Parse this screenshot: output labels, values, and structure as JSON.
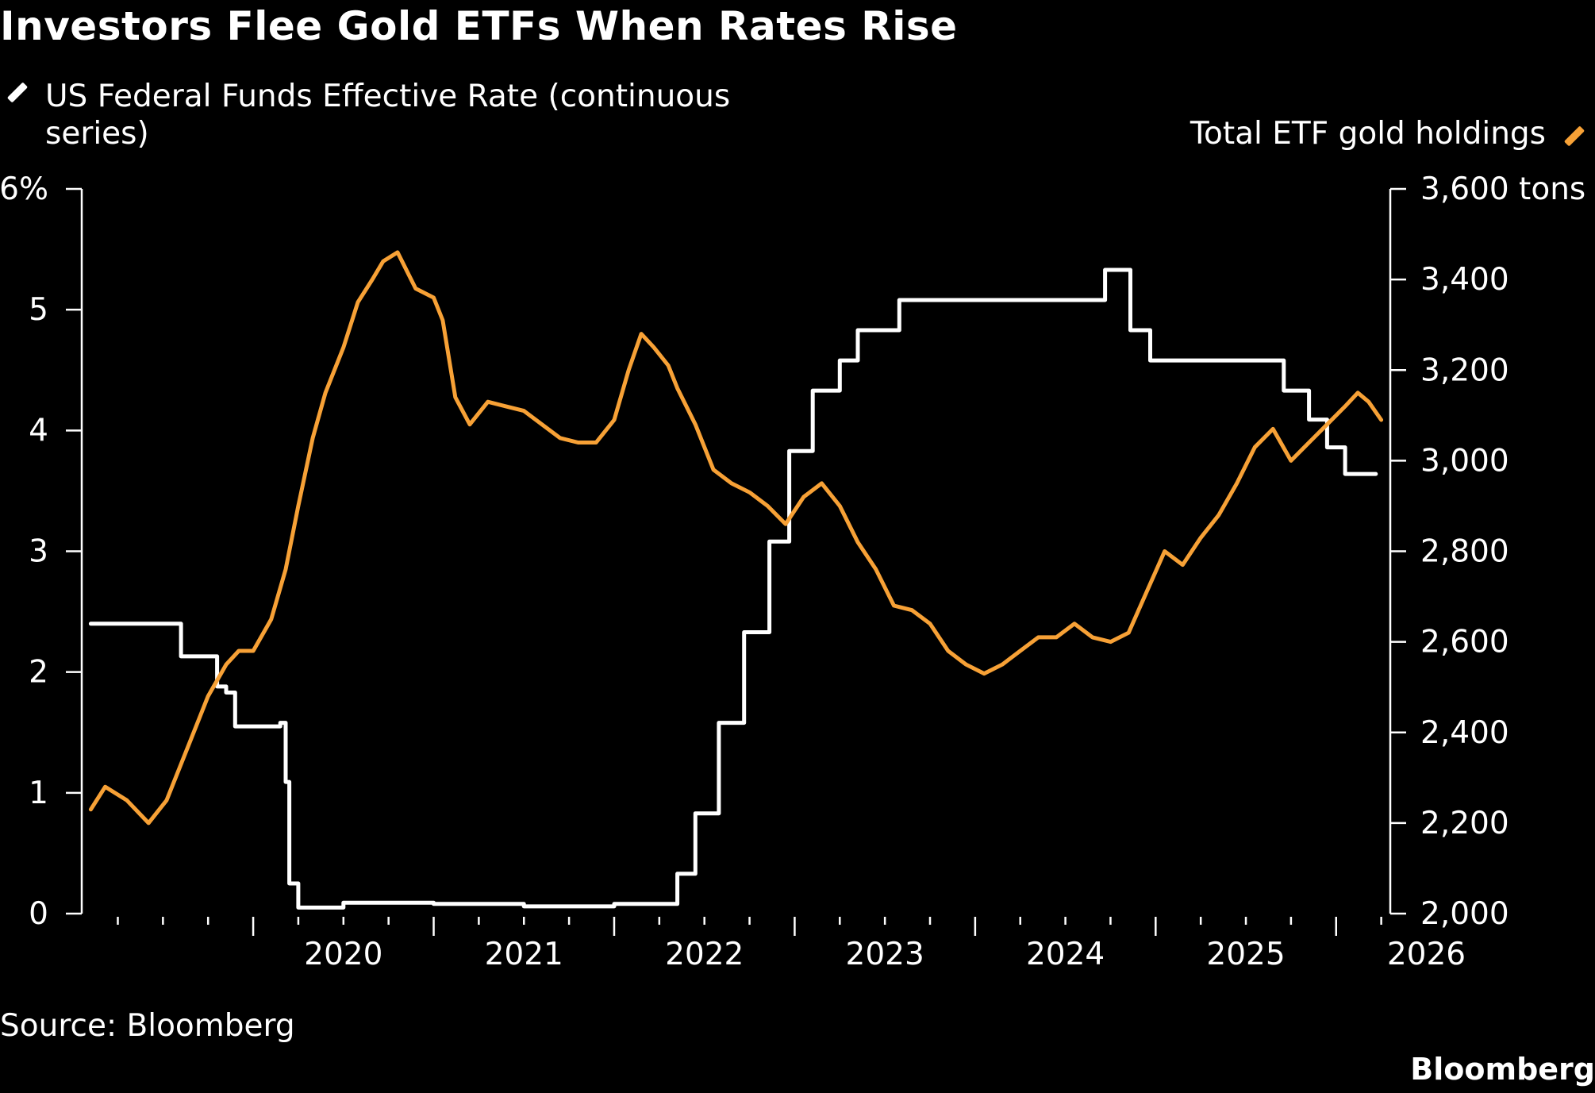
{
  "title": "Investors Flee Gold ETFs When Rates Rise",
  "source": "Source: Bloomberg",
  "brand": "Bloomberg",
  "colors": {
    "background": "#000000",
    "rate": "#ffffff",
    "gold": "#f7a136"
  },
  "chart_data": {
    "type": "line",
    "title": "Investors Flee Gold ETFs When Rates Rise",
    "x_tick_labels": [
      "2020",
      "2021",
      "2022",
      "2023",
      "2024",
      "2025",
      "2026"
    ],
    "xlim": [
      2019.05,
      2026.3
    ],
    "left_axis": {
      "ylim": [
        0,
        6
      ],
      "tick_labels": [
        "6%",
        "5",
        "4",
        "3",
        "2",
        "1",
        "0"
      ],
      "tick_values": [
        6,
        5,
        4,
        3,
        2,
        1,
        0
      ]
    },
    "right_axis": {
      "ylim": [
        2000,
        3600
      ],
      "tick_labels": [
        "3,600 tons",
        "3,400",
        "3,200",
        "3,000",
        "2,800",
        "2,600",
        "2,400",
        "2,200",
        "2,000"
      ],
      "tick_values": [
        3600,
        3400,
        3200,
        3000,
        2800,
        2600,
        2400,
        2200,
        2000
      ]
    },
    "legend_placement": "top",
    "grid": false,
    "series": [
      {
        "name": "US Federal Funds Effective Rate (continuous series)",
        "axis": "left",
        "color": "#ffffff",
        "step": true,
        "x": [
          2019.1,
          2019.55,
          2019.6,
          2019.75,
          2019.8,
          2019.85,
          2019.9,
          2020.15,
          2020.18,
          2020.2,
          2020.25,
          2020.5,
          2021.0,
          2021.5,
          2022.0,
          2022.2,
          2022.35,
          2022.45,
          2022.58,
          2022.72,
          2022.86,
          2022.97,
          2023.1,
          2023.25,
          2023.35,
          2023.58,
          2024.72,
          2024.86,
          2024.97,
          2025.71,
          2025.85,
          2025.95,
          2026.05,
          2026.22
        ],
        "values": [
          2.4,
          2.4,
          2.13,
          2.13,
          1.88,
          1.83,
          1.55,
          1.58,
          1.09,
          0.25,
          0.05,
          0.09,
          0.08,
          0.06,
          0.08,
          0.08,
          0.33,
          0.83,
          1.58,
          2.33,
          3.08,
          3.83,
          4.33,
          4.58,
          4.83,
          5.08,
          5.33,
          4.83,
          4.58,
          4.33,
          4.09,
          3.86,
          3.64,
          3.64
        ]
      },
      {
        "name": "Total ETF gold holdings",
        "axis": "right",
        "color": "#f7a136",
        "step": false,
        "x": [
          2019.1,
          2019.18,
          2019.3,
          2019.42,
          2019.52,
          2019.65,
          2019.75,
          2019.85,
          2019.92,
          2020.0,
          2020.1,
          2020.18,
          2020.25,
          2020.33,
          2020.4,
          2020.5,
          2020.58,
          2020.66,
          2020.72,
          2020.8,
          2020.9,
          2021.0,
          2021.05,
          2021.12,
          2021.2,
          2021.3,
          2021.4,
          2021.5,
          2021.6,
          2021.7,
          2021.8,
          2021.9,
          2022.0,
          2022.08,
          2022.15,
          2022.22,
          2022.3,
          2022.35,
          2022.45,
          2022.55,
          2022.65,
          2022.75,
          2022.85,
          2022.95,
          2023.05,
          2023.15,
          2023.25,
          2023.35,
          2023.45,
          2023.55,
          2023.65,
          2023.75,
          2023.85,
          2023.95,
          2024.05,
          2024.15,
          2024.25,
          2024.35,
          2024.45,
          2024.55,
          2024.65,
          2024.75,
          2024.85,
          2024.95,
          2025.05,
          2025.15,
          2025.25,
          2025.35,
          2025.45,
          2025.55,
          2025.65,
          2025.75,
          2025.85,
          2025.95,
          2026.05,
          2026.12,
          2026.18,
          2026.25
        ],
        "values": [
          2230,
          2280,
          2250,
          2200,
          2250,
          2380,
          2480,
          2550,
          2580,
          2580,
          2650,
          2760,
          2900,
          3050,
          3150,
          3250,
          3350,
          3400,
          3440,
          3460,
          3380,
          3360,
          3310,
          3140,
          3080,
          3130,
          3120,
          3110,
          3080,
          3050,
          3040,
          3040,
          3090,
          3200,
          3280,
          3250,
          3210,
          3160,
          3080,
          2980,
          2950,
          2930,
          2900,
          2860,
          2920,
          2950,
          2900,
          2820,
          2760,
          2680,
          2670,
          2640,
          2580,
          2550,
          2530,
          2550,
          2580,
          2610,
          2610,
          2640,
          2610,
          2600,
          2620,
          2710,
          2800,
          2770,
          2830,
          2880,
          2950,
          3030,
          3070,
          3000,
          3040,
          3080,
          3120,
          3150,
          3130,
          3090
        ]
      }
    ]
  }
}
